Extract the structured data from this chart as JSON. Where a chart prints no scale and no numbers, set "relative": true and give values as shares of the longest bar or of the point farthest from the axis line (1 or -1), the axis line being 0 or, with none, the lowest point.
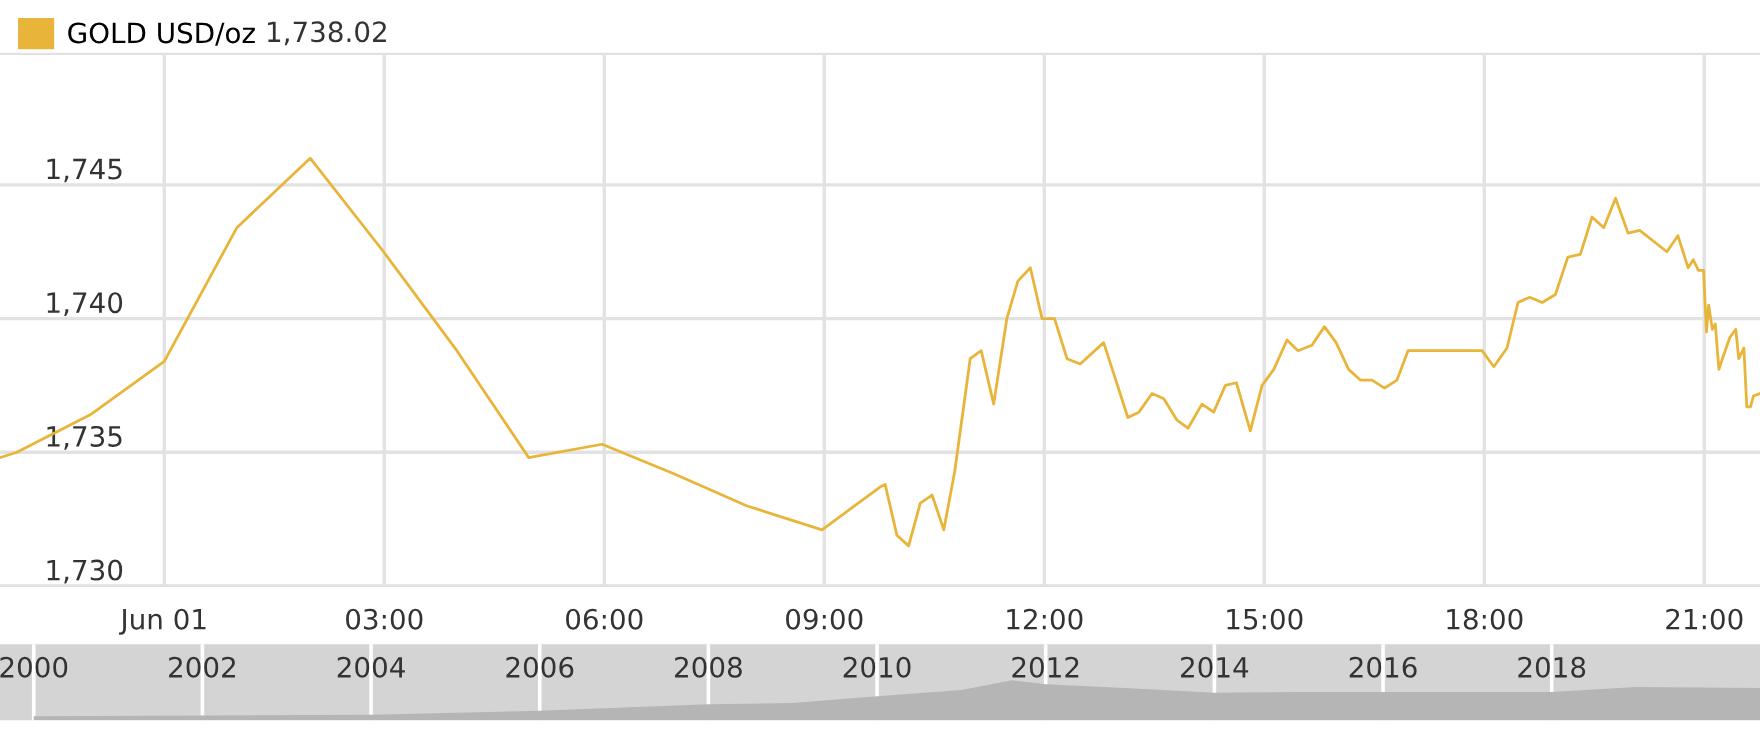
{
  "chart_data": [
    {
      "type": "line",
      "annotations": [
        "1,738.02"
      ],
      "legend": "top left",
      "grid": true,
      "marker": "none",
      "line_style": "solid",
      "xlim": [
        -2.24,
        21.76
      ],
      "ylim": [
        1730,
        1749.9
      ],
      "xticks": [
        {
          "value": 0,
          "label": "Jun 01"
        },
        {
          "value": 3,
          "label": "03:00"
        },
        {
          "value": 6,
          "label": "06:00"
        },
        {
          "value": 9,
          "label": "09:00"
        },
        {
          "value": 12,
          "label": "12:00"
        },
        {
          "value": 15,
          "label": "15:00"
        },
        {
          "value": 18,
          "label": "18:00"
        },
        {
          "value": 21,
          "label": "21:00"
        }
      ],
      "yticks": [
        {
          "value": 1730,
          "label": "1,730"
        },
        {
          "value": 1735,
          "label": "1,735"
        },
        {
          "value": 1740,
          "label": "1,740"
        },
        {
          "value": 1745,
          "label": "1,745"
        }
      ],
      "series": [
        {
          "name": "GOLD USD/oz",
          "color": "#e8b53a",
          "x": [
            -2.24,
            -2.01,
            -1.01,
            0,
            0.99,
            1.99,
            2.99,
            3.99,
            4.97,
            5.97,
            6.95,
            7.94,
            8.97,
            9.76,
            9.83,
            9.99,
            10.15,
            10.31,
            10.47,
            10.63,
            10.78,
            10.99,
            11.14,
            11.31,
            11.49,
            11.64,
            11.81,
            11.97,
            12.14,
            12.31,
            12.49,
            12.81,
            13.14,
            13.29,
            13.47,
            13.63,
            13.81,
            13.96,
            14.15,
            14.31,
            14.47,
            14.62,
            14.81,
            14.97,
            15.13,
            15.31,
            15.46,
            15.65,
            15.82,
            15.98,
            16.15,
            16.31,
            16.47,
            16.64,
            16.81,
            16.96,
            17.97,
            18.13,
            18.31,
            18.46,
            18.62,
            18.79,
            18.97,
            19.14,
            19.31,
            19.47,
            19.63,
            19.79,
            19.96,
            20.12,
            20.49,
            20.64,
            20.78,
            20.85,
            20.92,
            20.99,
            21.03,
            21.06,
            21.11,
            21.15,
            21.2,
            21.26,
            21.35,
            21.43,
            21.47,
            21.54,
            21.58,
            21.63,
            21.67,
            21.76
          ],
          "values": [
            1734.8,
            1735.0,
            1736.4,
            1738.4,
            1743.4,
            1746.0,
            1742.5,
            1738.8,
            1734.8,
            1735.3,
            1734.2,
            1733.0,
            1732.1,
            1733.7,
            1733.8,
            1731.9,
            1731.5,
            1733.1,
            1733.4,
            1732.1,
            1734.3,
            1738.5,
            1738.8,
            1736.8,
            1740.0,
            1741.4,
            1741.9,
            1740.0,
            1740.0,
            1738.5,
            1738.3,
            1739.1,
            1736.3,
            1736.5,
            1737.2,
            1737.0,
            1736.2,
            1735.9,
            1736.8,
            1736.5,
            1737.5,
            1737.6,
            1735.8,
            1737.5,
            1738.1,
            1739.2,
            1738.8,
            1739.0,
            1739.7,
            1739.1,
            1738.1,
            1737.7,
            1737.7,
            1737.4,
            1737.7,
            1738.8,
            1738.8,
            1738.2,
            1738.9,
            1740.6,
            1740.8,
            1740.6,
            1740.9,
            1742.3,
            1742.4,
            1743.8,
            1743.4,
            1744.5,
            1743.2,
            1743.3,
            1742.5,
            1743.1,
            1741.9,
            1742.2,
            1741.8,
            1741.8,
            1739.5,
            1740.5,
            1739.6,
            1739.8,
            1738.1,
            1738.6,
            1739.3,
            1739.6,
            1738.5,
            1738.9,
            1736.7,
            1736.7,
            1737.1,
            1737.2
          ]
        }
      ]
    },
    {
      "type": "area",
      "relative": true,
      "grid": "x",
      "xlim": [
        1999.6,
        2020.47
      ],
      "xticks": [
        2000,
        2002,
        2004,
        2006,
        2008,
        2010,
        2012,
        2014,
        2016,
        2018
      ],
      "series": [
        {
          "color": "#b5b5b5",
          "x": [
            2000,
            2002,
            2004,
            2006,
            2008,
            2009,
            2010,
            2011,
            2011.6,
            2012,
            2013,
            2014,
            2015,
            2016,
            2017,
            2018,
            2019,
            2020.47
          ],
          "values": [
            0.1,
            0.12,
            0.14,
            0.24,
            0.4,
            0.43,
            0.6,
            0.76,
            1,
            0.9,
            0.8,
            0.69,
            0.71,
            0.71,
            0.71,
            0.71,
            0.83,
            0.81
          ]
        }
      ]
    }
  ]
}
